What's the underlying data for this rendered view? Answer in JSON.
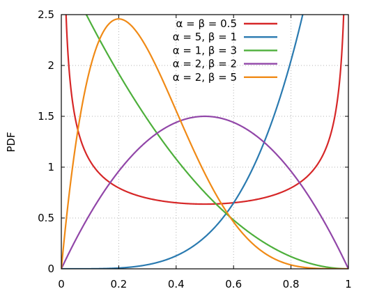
{
  "chart_data": {
    "type": "line",
    "ylabel": "PDF",
    "xlabel": "",
    "xlim": [
      0,
      1
    ],
    "ylim": [
      0,
      2.5
    ],
    "x_ticks": [
      "0",
      "0.2",
      "0.4",
      "0.6",
      "0.8",
      "1"
    ],
    "y_ticks": [
      "0",
      "0.5",
      "1",
      "1.5",
      "2",
      "2.5"
    ],
    "grid": true,
    "legend_position": "top-right",
    "series": [
      {
        "name": "α = β = 0.5",
        "color": "#d62728",
        "params": {
          "alpha": 0.5,
          "beta": 0.5
        }
      },
      {
        "name": "α = 5, β = 1",
        "color": "#2a7ab0",
        "params": {
          "alpha": 5,
          "beta": 1
        }
      },
      {
        "name": "α = 1, β = 3",
        "color": "#4daf3b",
        "params": {
          "alpha": 1,
          "beta": 3
        }
      },
      {
        "name": "α = 2, β = 2",
        "color": "#9146a8",
        "params": {
          "alpha": 2,
          "beta": 2
        }
      },
      {
        "name": "α = 2, β = 5",
        "color": "#f08a16",
        "params": {
          "alpha": 2,
          "beta": 5
        }
      }
    ]
  }
}
